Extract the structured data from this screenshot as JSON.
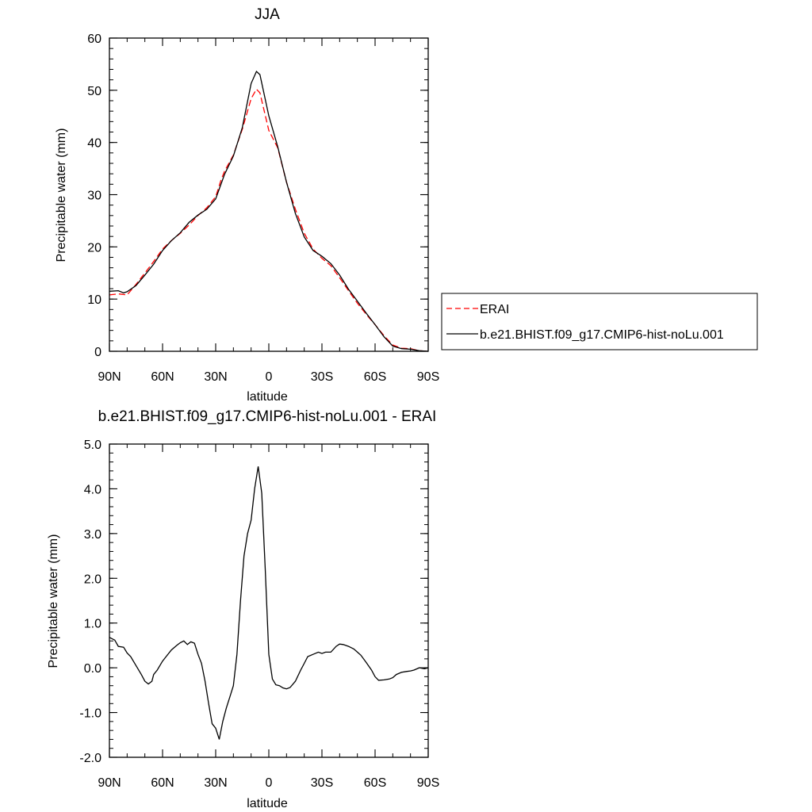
{
  "chart_data": [
    {
      "type": "line",
      "title": "JJA",
      "xlabel": "latitude",
      "ylabel": "Precipitable water (mm)",
      "xlim": [
        90,
        -90
      ],
      "ylim": [
        0,
        60
      ],
      "x_ticks": [
        {
          "value": 90,
          "label": "90N"
        },
        {
          "value": 60,
          "label": "60N"
        },
        {
          "value": 30,
          "label": "30N"
        },
        {
          "value": 0,
          "label": "0"
        },
        {
          "value": -30,
          "label": "30S"
        },
        {
          "value": -60,
          "label": "60S"
        },
        {
          "value": -90,
          "label": "90S"
        }
      ],
      "y_ticks": [
        {
          "value": 0,
          "label": "0"
        },
        {
          "value": 10,
          "label": "10"
        },
        {
          "value": 20,
          "label": "20"
        },
        {
          "value": 30,
          "label": "30"
        },
        {
          "value": 40,
          "label": "40"
        },
        {
          "value": 50,
          "label": "50"
        },
        {
          "value": 60,
          "label": "60"
        }
      ],
      "legend": {
        "placement": "right"
      },
      "series": [
        {
          "name": "ERAI",
          "color": "#ff0000",
          "dash": true,
          "x": [
            90,
            85,
            80,
            75,
            70,
            65,
            60,
            55,
            50,
            45,
            40,
            35,
            30,
            27,
            25,
            20,
            15,
            10,
            7,
            5,
            0,
            -5,
            -10,
            -15,
            -20,
            -25,
            -30,
            -35,
            -40,
            -45,
            -50,
            -55,
            -60,
            -65,
            -70,
            -75,
            -80,
            -85,
            -90
          ],
          "y": [
            10.8,
            11.0,
            10.8,
            12.8,
            15.0,
            17.2,
            19.6,
            21.2,
            22.6,
            24.2,
            26.0,
            27.5,
            29.6,
            32.8,
            34.5,
            37.6,
            42.5,
            48.4,
            50.2,
            49.5,
            42.3,
            39.0,
            32.4,
            27.2,
            22.6,
            19.6,
            17.8,
            16.4,
            14.1,
            11.6,
            9.2,
            7.1,
            5.1,
            3.0,
            1.2,
            0.6,
            0.5,
            0.1,
            0.0
          ]
        },
        {
          "name": "b.e21.BHIST.f09_g17.CMIP6-hist-noLu.001",
          "color": "#000000",
          "dash": false,
          "x": [
            90,
            85,
            82,
            80,
            75,
            70,
            65,
            60,
            55,
            50,
            45,
            40,
            35,
            30,
            25,
            20,
            15,
            10,
            7,
            5,
            0,
            -5,
            -10,
            -15,
            -20,
            -25,
            -30,
            -35,
            -40,
            -45,
            -50,
            -55,
            -60,
            -65,
            -70,
            -75,
            -80,
            -85,
            -90
          ],
          "y": [
            11.5,
            11.6,
            11.2,
            11.4,
            12.6,
            14.6,
            16.7,
            19.3,
            21.2,
            22.7,
            24.7,
            26.1,
            27.2,
            29.2,
            33.9,
            37.4,
            42.8,
            51.3,
            53.6,
            53.0,
            45.1,
            39.2,
            32.4,
            26.4,
            21.9,
            19.3,
            18.2,
            16.8,
            14.6,
            11.9,
            9.6,
            7.3,
            5.1,
            2.8,
            1.0,
            0.5,
            0.4,
            0.1,
            0.0
          ]
        }
      ]
    },
    {
      "type": "line",
      "title": "b.e21.BHIST.f09_g17.CMIP6-hist-noLu.001 - ERAI",
      "xlabel": "latitude",
      "ylabel": "Precipitable water (mm)",
      "xlim": [
        90,
        -90
      ],
      "ylim": [
        -2.0,
        5.0
      ],
      "x_ticks": [
        {
          "value": 90,
          "label": "90N"
        },
        {
          "value": 60,
          "label": "60N"
        },
        {
          "value": 30,
          "label": "30N"
        },
        {
          "value": 0,
          "label": "0"
        },
        {
          "value": -30,
          "label": "30S"
        },
        {
          "value": -60,
          "label": "60S"
        },
        {
          "value": -90,
          "label": "90S"
        }
      ],
      "y_ticks": [
        {
          "value": -2.0,
          "label": "-2.0"
        },
        {
          "value": -1.0,
          "label": "-1.0"
        },
        {
          "value": 0.0,
          "label": "0.0"
        },
        {
          "value": 1.0,
          "label": "1.0"
        },
        {
          "value": 2.0,
          "label": "2.0"
        },
        {
          "value": 3.0,
          "label": "3.0"
        },
        {
          "value": 4.0,
          "label": "4.0"
        },
        {
          "value": 5.0,
          "label": "5.0"
        }
      ],
      "series": [
        {
          "color": "#000000",
          "dash": false,
          "x": [
            90,
            87,
            85,
            82,
            80,
            78,
            75,
            72,
            70,
            68,
            66,
            65,
            63,
            60,
            58,
            55,
            52,
            50,
            48,
            46,
            44,
            42,
            40,
            38,
            36,
            34,
            32,
            30,
            28,
            26,
            24,
            22,
            20,
            18,
            16,
            14,
            12,
            10,
            8,
            6,
            4,
            2,
            0,
            -2,
            -4,
            -6,
            -8,
            -10,
            -12,
            -15,
            -18,
            -20,
            -22,
            -25,
            -28,
            -30,
            -32,
            -35,
            -38,
            -40,
            -42,
            -45,
            -48,
            -50,
            -52,
            -55,
            -58,
            -60,
            -62,
            -65,
            -68,
            -70,
            -72,
            -75,
            -78,
            -80,
            -82,
            -85,
            -88,
            -90
          ],
          "y": [
            0.68,
            0.62,
            0.48,
            0.46,
            0.33,
            0.25,
            0.05,
            -0.15,
            -0.3,
            -0.36,
            -0.3,
            -0.15,
            -0.05,
            0.15,
            0.25,
            0.4,
            0.5,
            0.56,
            0.6,
            0.52,
            0.58,
            0.55,
            0.3,
            0.1,
            -0.3,
            -0.8,
            -1.25,
            -1.35,
            -1.6,
            -1.2,
            -0.9,
            -0.65,
            -0.4,
            0.3,
            1.5,
            2.5,
            3.0,
            3.3,
            4.0,
            4.5,
            3.9,
            2.2,
            0.3,
            -0.25,
            -0.38,
            -0.4,
            -0.45,
            -0.47,
            -0.44,
            -0.3,
            -0.05,
            0.1,
            0.25,
            0.3,
            0.35,
            0.32,
            0.35,
            0.35,
            0.48,
            0.53,
            0.52,
            0.48,
            0.42,
            0.35,
            0.28,
            0.12,
            -0.05,
            -0.2,
            -0.28,
            -0.27,
            -0.25,
            -0.22,
            -0.15,
            -0.1,
            -0.08,
            -0.07,
            -0.05,
            0.0,
            -0.02,
            0.0
          ]
        }
      ]
    }
  ]
}
